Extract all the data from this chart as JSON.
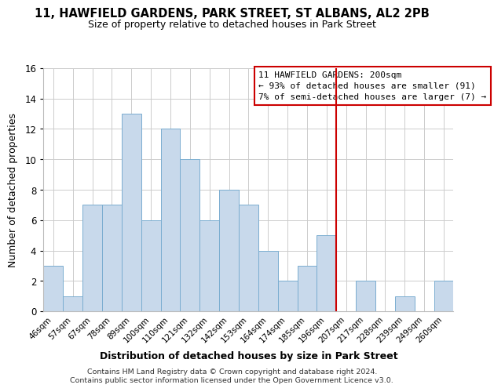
{
  "title": "11, HAWFIELD GARDENS, PARK STREET, ST ALBANS, AL2 2PB",
  "subtitle": "Size of property relative to detached houses in Park Street",
  "xlabel": "Distribution of detached houses by size in Park Street",
  "ylabel": "Number of detached properties",
  "bar_labels": [
    "46sqm",
    "57sqm",
    "67sqm",
    "78sqm",
    "89sqm",
    "100sqm",
    "110sqm",
    "121sqm",
    "132sqm",
    "142sqm",
    "153sqm",
    "164sqm",
    "174sqm",
    "185sqm",
    "196sqm",
    "207sqm",
    "217sqm",
    "228sqm",
    "239sqm",
    "249sqm",
    "260sqm"
  ],
  "bar_heights": [
    3,
    1,
    7,
    7,
    13,
    6,
    12,
    10,
    6,
    8,
    7,
    4,
    2,
    3,
    5,
    0,
    2,
    0,
    1,
    0,
    2
  ],
  "bar_color": "#c8d9eb",
  "bar_edgecolor": "#7aadd0",
  "ylim": [
    0,
    16
  ],
  "yticks": [
    0,
    2,
    4,
    6,
    8,
    10,
    12,
    14,
    16
  ],
  "property_line_label": "11 HAWFIELD GARDENS: 200sqm",
  "annotation_line1": "← 93% of detached houses are smaller (91)",
  "annotation_line2": "7% of semi-detached houses are larger (7) →",
  "vline_color": "#cc0000",
  "footnote1": "Contains HM Land Registry data © Crown copyright and database right 2024.",
  "footnote2": "Contains public sector information licensed under the Open Government Licence v3.0.",
  "bg_color": "#ffffff",
  "grid_color": "#cccccc",
  "property_bar_index": 15
}
